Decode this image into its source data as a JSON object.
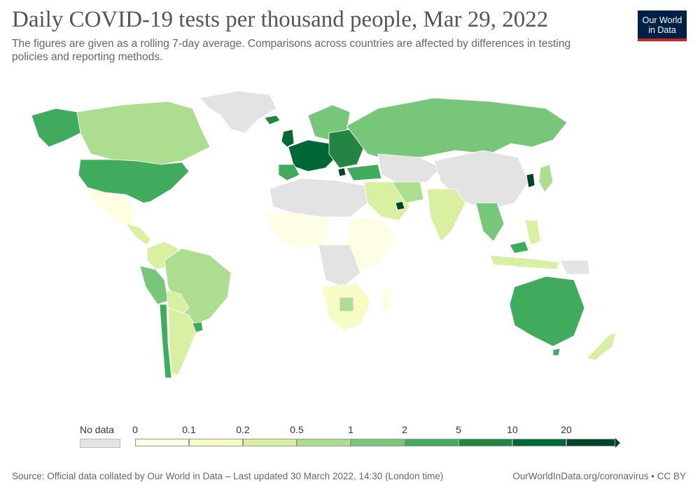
{
  "header": {
    "title": "Daily COVID-19 tests per thousand people, Mar 29, 2022",
    "subtitle": "The figures are given as a rolling 7-day average. Comparisons across countries are affected by differences in testing policies and reporting methods."
  },
  "logo": {
    "line1": "Our World",
    "line2": "in Data"
  },
  "legend": {
    "no_data_label": "No data",
    "ticks": [
      "0",
      "0.1",
      "0.2",
      "0.5",
      "1",
      "2",
      "5",
      "10",
      "20"
    ],
    "colors": [
      "#fefee5",
      "#f7fbc6",
      "#d9f0a3",
      "#addd8e",
      "#78c679",
      "#41ab5d",
      "#238443",
      "#006837",
      "#004529"
    ],
    "no_data_color": "#e3e3e3"
  },
  "footer": {
    "source": "Source: Official data collated by Our World in Data – Last updated 30 March 2022, 14:30 (London time)",
    "credit": "OurWorldInData.org/coronavirus • CC BY"
  }
}
